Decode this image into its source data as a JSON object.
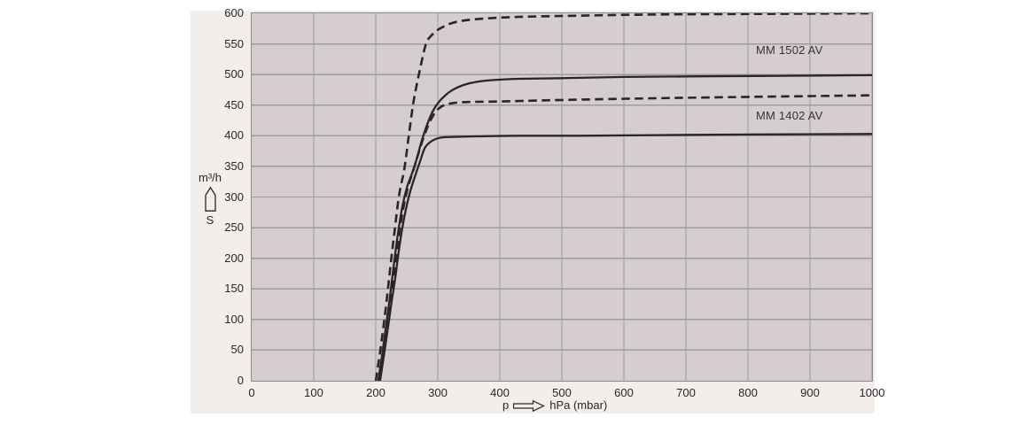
{
  "colors": {
    "page_bg": "#ffffff",
    "panel_bg": "#f1eeeb",
    "plot_bg": "#d5cdce",
    "grid": "#a19b9d",
    "frame": "#8d898b",
    "curve": "#2a2526",
    "text": "#2b2627"
  },
  "y_axis_label": {
    "unit": "m³/h",
    "quantity": "S"
  },
  "x_axis_label": {
    "quantity": "p",
    "unit": "hPa (mbar)"
  },
  "chart_data": {
    "type": "line",
    "title": "",
    "xlabel": "p → hPa (mbar)",
    "ylabel": "S (m³/h)",
    "xlim": [
      0,
      1000
    ],
    "ylim": [
      0,
      600
    ],
    "x_ticks": [
      0,
      100,
      200,
      300,
      400,
      500,
      600,
      700,
      800,
      900,
      1000
    ],
    "y_ticks": [
      0,
      50,
      100,
      150,
      200,
      250,
      300,
      350,
      400,
      450,
      500,
      550,
      600
    ],
    "grid": true,
    "legend_position": "none",
    "annotations": [
      {
        "text": "MM 1502 AV",
        "x": 813,
        "y": 539
      },
      {
        "text": "MM 1402 AV",
        "x": 813,
        "y": 433
      }
    ],
    "series": [
      {
        "name": "MM 1502 AV (dashed)",
        "id": "mm-1502-av-dashed",
        "style": "dashed",
        "points": [
          [
            200,
            0
          ],
          [
            206,
            40
          ],
          [
            212,
            85
          ],
          [
            218,
            135
          ],
          [
            224,
            190
          ],
          [
            231,
            250
          ],
          [
            238,
            305
          ],
          [
            246,
            345
          ],
          [
            253,
            398
          ],
          [
            260,
            450
          ],
          [
            266,
            483
          ],
          [
            272,
            512
          ],
          [
            281,
            550
          ],
          [
            290,
            564
          ],
          [
            305,
            576
          ],
          [
            330,
            586
          ],
          [
            370,
            591
          ],
          [
            430,
            594
          ],
          [
            520,
            596
          ],
          [
            650,
            598
          ],
          [
            820,
            599
          ],
          [
            1000,
            600
          ]
        ]
      },
      {
        "name": "MM 1502 AV (solid)",
        "id": "mm-1502-av-solid",
        "style": "solid",
        "points": [
          [
            204,
            0
          ],
          [
            210,
            40
          ],
          [
            216,
            85
          ],
          [
            222,
            130
          ],
          [
            228,
            180
          ],
          [
            235,
            235
          ],
          [
            243,
            285
          ],
          [
            251,
            318
          ],
          [
            259,
            340
          ],
          [
            266,
            362
          ],
          [
            273,
            388
          ],
          [
            281,
            413
          ],
          [
            290,
            436
          ],
          [
            300,
            453
          ],
          [
            312,
            466
          ],
          [
            326,
            476
          ],
          [
            342,
            483
          ],
          [
            362,
            488
          ],
          [
            390,
            491
          ],
          [
            430,
            493
          ],
          [
            500,
            494
          ],
          [
            600,
            496
          ],
          [
            720,
            497
          ],
          [
            860,
            498
          ],
          [
            1000,
            499
          ]
        ]
      },
      {
        "name": "MM 1402 AV (dashed)",
        "id": "mm-1402-av-dashed",
        "style": "dashed",
        "points": [
          [
            205,
            0
          ],
          [
            211,
            40
          ],
          [
            217,
            85
          ],
          [
            223,
            130
          ],
          [
            230,
            180
          ],
          [
            237,
            235
          ],
          [
            245,
            285
          ],
          [
            253,
            320
          ],
          [
            261,
            345
          ],
          [
            269,
            372
          ],
          [
            277,
            397
          ],
          [
            285,
            418
          ],
          [
            293,
            434
          ],
          [
            301,
            444
          ],
          [
            310,
            450
          ],
          [
            322,
            453
          ],
          [
            345,
            455
          ],
          [
            400,
            456
          ],
          [
            480,
            458
          ],
          [
            580,
            460
          ],
          [
            700,
            462
          ],
          [
            840,
            464
          ],
          [
            1000,
            466
          ]
        ]
      },
      {
        "name": "MM 1402 AV (solid)",
        "id": "mm-1402-av-solid",
        "style": "solid",
        "points": [
          [
            207,
            0
          ],
          [
            213,
            40
          ],
          [
            219,
            82
          ],
          [
            225,
            125
          ],
          [
            232,
            172
          ],
          [
            239,
            225
          ],
          [
            247,
            272
          ],
          [
            255,
            307
          ],
          [
            263,
            333
          ],
          [
            271,
            357
          ],
          [
            279,
            380
          ],
          [
            287,
            389
          ],
          [
            295,
            394
          ],
          [
            305,
            397
          ],
          [
            320,
            398
          ],
          [
            360,
            399
          ],
          [
            430,
            400
          ],
          [
            530,
            400
          ],
          [
            650,
            401
          ],
          [
            800,
            402
          ],
          [
            1000,
            403
          ]
        ]
      }
    ]
  }
}
